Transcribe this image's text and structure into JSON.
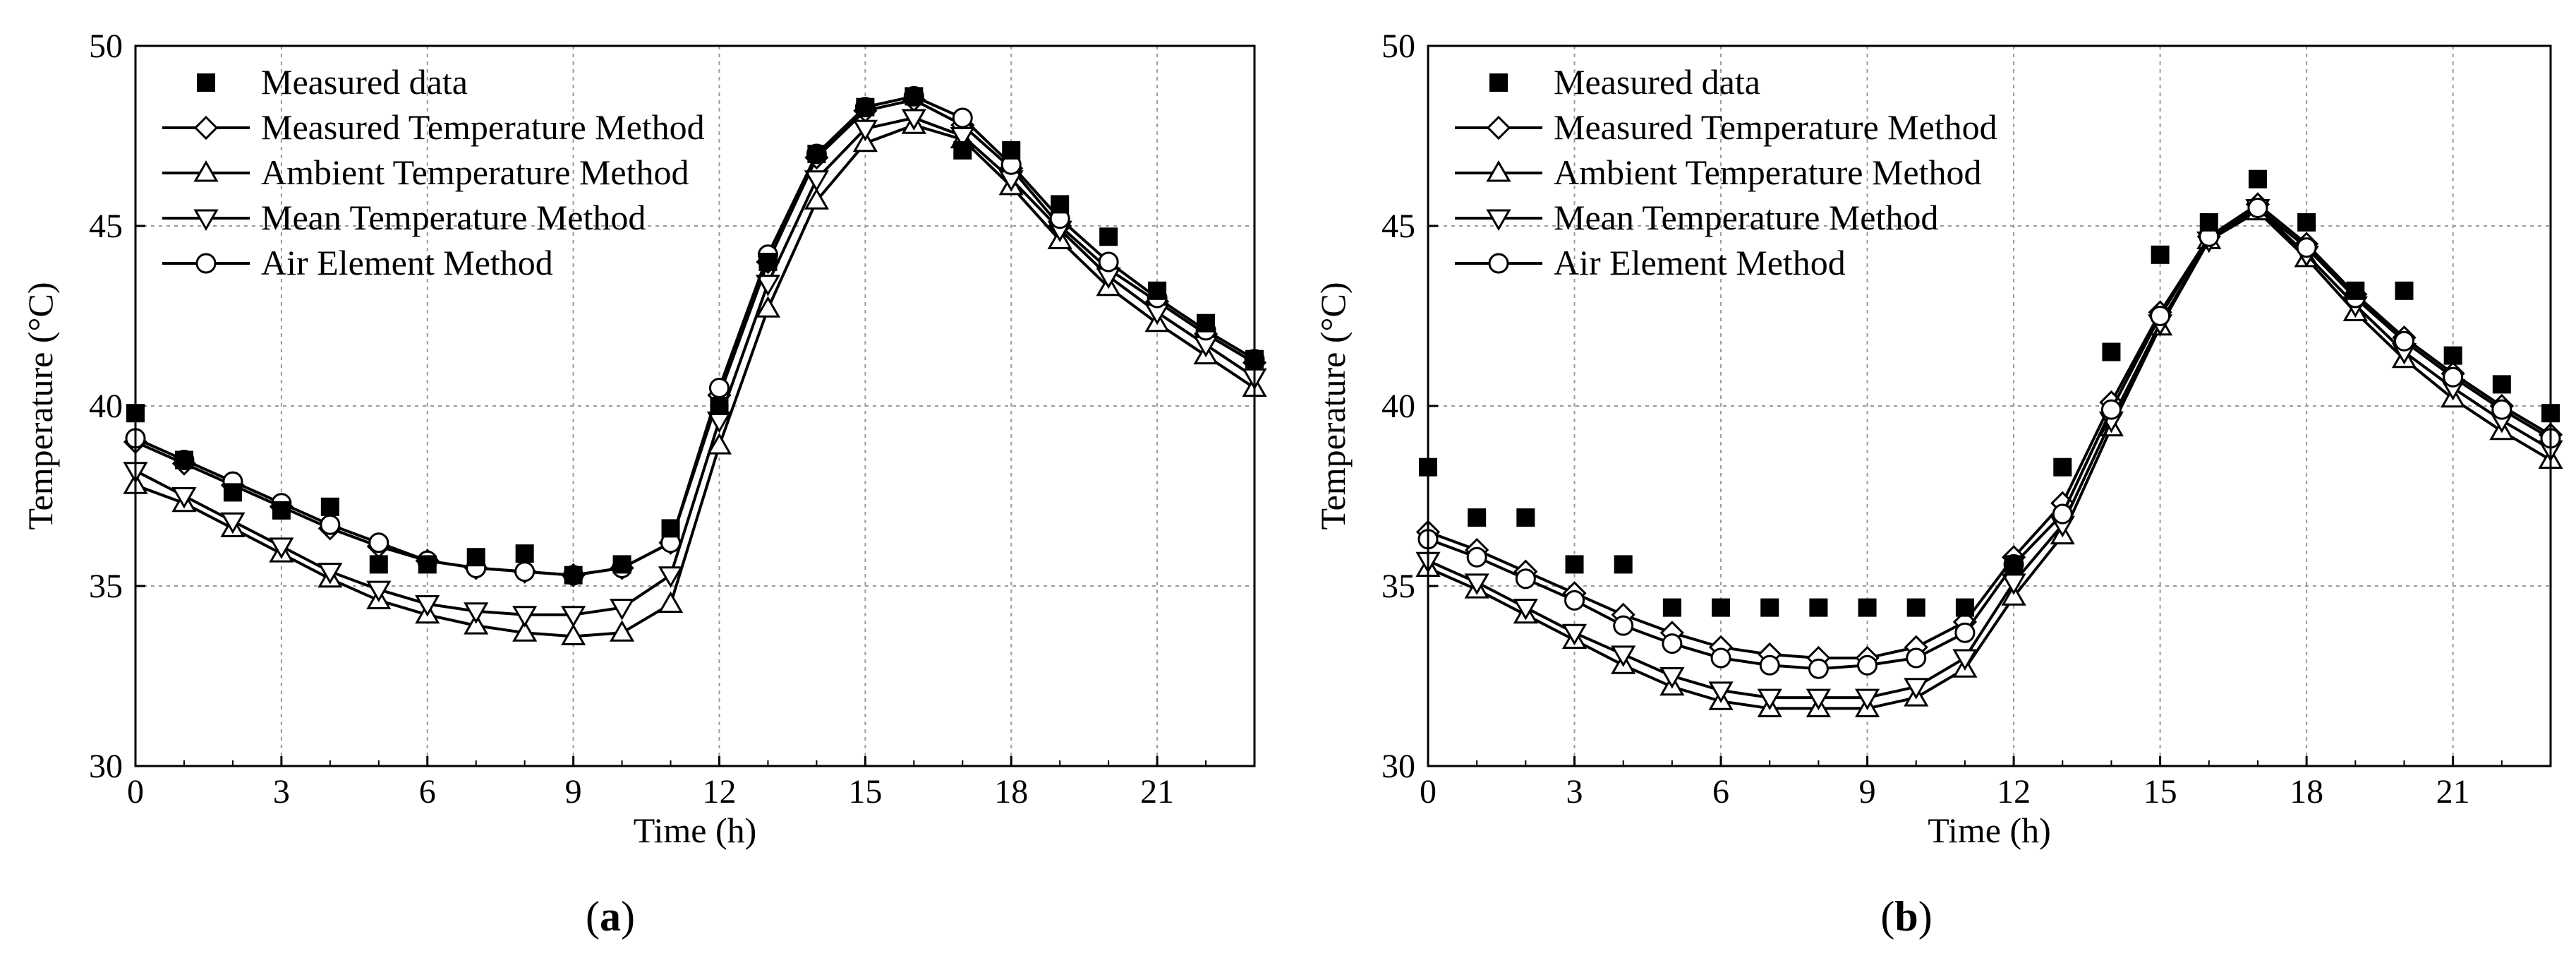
{
  "colors": {
    "background": "#ffffff",
    "axis": "#000000",
    "grid": "#9a9a9a",
    "marker_fill": "#ffffff",
    "measured_fill": "#000000"
  },
  "panel_labels": {
    "a": {
      "open": "(",
      "letter": "a",
      "close": ")"
    },
    "b": {
      "open": "(",
      "letter": "b",
      "close": ")"
    }
  },
  "chart_data": [
    {
      "id": "a",
      "type": "line",
      "xlabel": "Time (h)",
      "ylabel": "Temperature (°C)",
      "xlim": [
        0,
        23
      ],
      "ylim": [
        30,
        50
      ],
      "xticks": [
        0,
        3,
        6,
        9,
        12,
        15,
        18,
        21
      ],
      "yticks": [
        30,
        35,
        40,
        45,
        50
      ],
      "grid": true,
      "legend_position": "top-left",
      "measured": {
        "name": "Measured data",
        "x": [
          0,
          1,
          2,
          3,
          4,
          5,
          6,
          7,
          8,
          9,
          10,
          11,
          12,
          13,
          14,
          15,
          16,
          17,
          18,
          19,
          20,
          21,
          22,
          23
        ],
        "y": [
          39.8,
          38.5,
          37.6,
          37.1,
          37.2,
          35.6,
          35.6,
          35.8,
          35.9,
          35.3,
          35.6,
          36.6,
          40.0,
          44.0,
          47.0,
          48.3,
          48.6,
          47.1,
          47.1,
          45.6,
          44.7,
          43.2,
          42.3,
          41.3
        ]
      },
      "series": [
        {
          "name": "Measured Temperature Method",
          "marker": "diamond",
          "x": [
            0,
            1,
            2,
            3,
            4,
            5,
            6,
            7,
            8,
            9,
            10,
            11,
            12,
            13,
            14,
            15,
            16,
            17,
            18,
            19,
            20,
            21,
            22,
            23
          ],
          "y": [
            39.0,
            38.4,
            37.8,
            37.2,
            36.6,
            36.1,
            35.7,
            35.5,
            35.4,
            35.3,
            35.5,
            36.2,
            40.3,
            44.0,
            46.9,
            48.2,
            48.5,
            47.8,
            46.6,
            45.0,
            43.8,
            42.9,
            42.0,
            41.2
          ]
        },
        {
          "name": "Ambient Temperature Method",
          "marker": "triangle-up",
          "x": [
            0,
            1,
            2,
            3,
            4,
            5,
            6,
            7,
            8,
            9,
            10,
            11,
            12,
            13,
            14,
            15,
            16,
            17,
            18,
            19,
            20,
            21,
            22,
            23
          ],
          "y": [
            37.8,
            37.3,
            36.6,
            35.9,
            35.2,
            34.6,
            34.2,
            33.9,
            33.7,
            33.6,
            33.7,
            34.5,
            38.9,
            42.7,
            45.7,
            47.3,
            47.8,
            47.4,
            46.1,
            44.6,
            43.3,
            42.3,
            41.4,
            40.5
          ]
        },
        {
          "name": "Mean Temperature Method",
          "marker": "triangle-down",
          "x": [
            0,
            1,
            2,
            3,
            4,
            5,
            6,
            7,
            8,
            9,
            10,
            11,
            12,
            13,
            14,
            15,
            16,
            17,
            18,
            19,
            20,
            21,
            22,
            23
          ],
          "y": [
            38.2,
            37.5,
            36.8,
            36.1,
            35.4,
            34.9,
            34.5,
            34.3,
            34.2,
            34.2,
            34.4,
            35.3,
            39.6,
            43.4,
            46.3,
            47.7,
            48.0,
            47.5,
            46.3,
            44.9,
            43.6,
            42.6,
            41.7,
            40.8
          ]
        },
        {
          "name": "Air Element Method",
          "marker": "circle",
          "x": [
            0,
            1,
            2,
            3,
            4,
            5,
            6,
            7,
            8,
            9,
            10,
            11,
            12,
            13,
            14,
            15,
            16,
            17,
            18,
            19,
            20,
            21,
            22,
            23
          ],
          "y": [
            39.1,
            38.5,
            37.9,
            37.3,
            36.7,
            36.2,
            35.7,
            35.5,
            35.4,
            35.3,
            35.5,
            36.2,
            40.5,
            44.2,
            47.0,
            48.3,
            48.6,
            48.0,
            46.7,
            45.2,
            44.0,
            43.0,
            42.1,
            41.3
          ]
        }
      ]
    },
    {
      "id": "b",
      "type": "line",
      "xlabel": "Time (h)",
      "ylabel": "Temperature (°C)",
      "xlim": [
        0,
        23
      ],
      "ylim": [
        30,
        50
      ],
      "xticks": [
        0,
        3,
        6,
        9,
        12,
        15,
        18,
        21
      ],
      "yticks": [
        30,
        35,
        40,
        45,
        50
      ],
      "grid": true,
      "legend_position": "top-left",
      "measured": {
        "name": "Measured data",
        "x": [
          0,
          1,
          2,
          3,
          4,
          5,
          6,
          7,
          8,
          9,
          10,
          11,
          12,
          13,
          14,
          15,
          16,
          17,
          18,
          19,
          20,
          21,
          22,
          23
        ],
        "y": [
          38.3,
          36.9,
          36.9,
          35.6,
          35.6,
          34.4,
          34.4,
          34.4,
          34.4,
          34.4,
          34.4,
          34.4,
          35.6,
          38.3,
          41.5,
          44.2,
          45.1,
          46.3,
          45.1,
          43.2,
          43.2,
          41.4,
          40.6,
          39.8
        ]
      },
      "series": [
        {
          "name": "Measured Temperature Method",
          "marker": "diamond",
          "x": [
            0,
            1,
            2,
            3,
            4,
            5,
            6,
            7,
            8,
            9,
            10,
            11,
            12,
            13,
            14,
            15,
            16,
            17,
            18,
            19,
            20,
            21,
            22,
            23
          ],
          "y": [
            36.5,
            36.0,
            35.4,
            34.8,
            34.2,
            33.7,
            33.3,
            33.1,
            33.0,
            33.0,
            33.3,
            34.0,
            35.8,
            37.3,
            40.1,
            42.6,
            44.7,
            45.6,
            44.5,
            43.1,
            41.9,
            40.9,
            40.0,
            39.2
          ]
        },
        {
          "name": "Ambient Temperature Method",
          "marker": "triangle-up",
          "x": [
            0,
            1,
            2,
            3,
            4,
            5,
            6,
            7,
            8,
            9,
            10,
            11,
            12,
            13,
            14,
            15,
            16,
            17,
            18,
            19,
            20,
            21,
            22,
            23
          ],
          "y": [
            35.5,
            34.9,
            34.2,
            33.5,
            32.8,
            32.2,
            31.8,
            31.6,
            31.6,
            31.6,
            31.9,
            32.7,
            34.7,
            36.4,
            39.4,
            42.2,
            44.6,
            45.4,
            44.1,
            42.6,
            41.3,
            40.2,
            39.3,
            38.5
          ]
        },
        {
          "name": "Mean Temperature Method",
          "marker": "triangle-down",
          "x": [
            0,
            1,
            2,
            3,
            4,
            5,
            6,
            7,
            8,
            9,
            10,
            11,
            12,
            13,
            14,
            15,
            16,
            17,
            18,
            19,
            20,
            21,
            22,
            23
          ],
          "y": [
            35.7,
            35.1,
            34.4,
            33.7,
            33.1,
            32.5,
            32.1,
            31.9,
            31.9,
            31.9,
            32.2,
            33.0,
            35.1,
            36.7,
            39.6,
            42.3,
            44.6,
            45.5,
            44.2,
            42.8,
            41.5,
            40.5,
            39.6,
            38.8
          ]
        },
        {
          "name": "Air Element Method",
          "marker": "circle",
          "x": [
            0,
            1,
            2,
            3,
            4,
            5,
            6,
            7,
            8,
            9,
            10,
            11,
            12,
            13,
            14,
            15,
            16,
            17,
            18,
            19,
            20,
            21,
            22,
            23
          ],
          "y": [
            36.3,
            35.8,
            35.2,
            34.6,
            33.9,
            33.4,
            33.0,
            32.8,
            32.7,
            32.8,
            33.0,
            33.7,
            35.6,
            37.0,
            39.9,
            42.5,
            44.7,
            45.5,
            44.4,
            43.0,
            41.8,
            40.8,
            39.9,
            39.1
          ]
        }
      ]
    }
  ]
}
